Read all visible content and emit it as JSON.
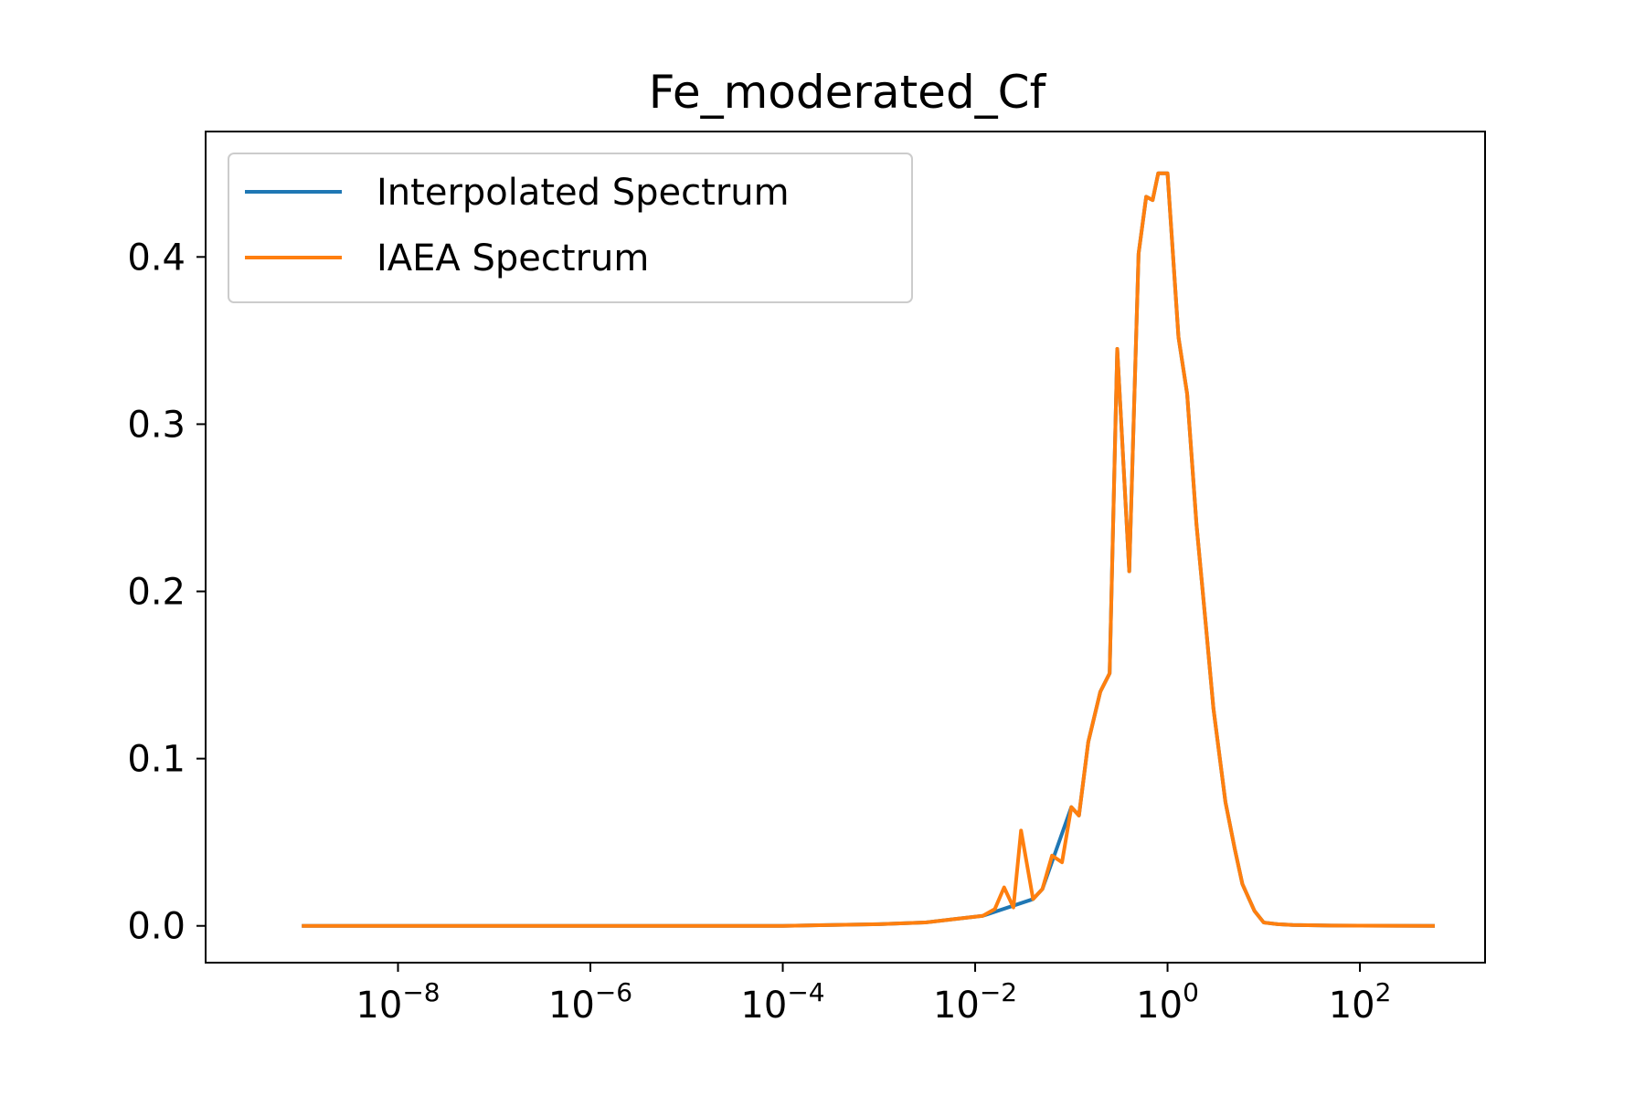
{
  "chart_data": {
    "type": "line",
    "title": "Fe_moderated_Cf",
    "xlabel": "",
    "ylabel": "",
    "xscale": "log",
    "xlim": [
      1e-10,
      2000
    ],
    "ylim": [
      -0.022,
      0.475
    ],
    "x_ticks": [
      {
        "value": 1e-08,
        "base": "10",
        "exp": "−8"
      },
      {
        "value": 1e-06,
        "base": "10",
        "exp": "−6"
      },
      {
        "value": 0.0001,
        "base": "10",
        "exp": "−4"
      },
      {
        "value": 0.01,
        "base": "10",
        "exp": "−2"
      },
      {
        "value": 1,
        "base": "10",
        "exp": "0"
      },
      {
        "value": 100,
        "base": "10",
        "exp": "2"
      }
    ],
    "y_ticks": [
      {
        "value": 0.0,
        "label": "0.0"
      },
      {
        "value": 0.1,
        "label": "0.1"
      },
      {
        "value": 0.2,
        "label": "0.2"
      },
      {
        "value": 0.3,
        "label": "0.3"
      },
      {
        "value": 0.4,
        "label": "0.4"
      }
    ],
    "grid": false,
    "legend_position": "top-left",
    "series": [
      {
        "name": "Interpolated Spectrum",
        "color": "#1f77b4",
        "x": [
          1e-09,
          1e-08,
          1e-06,
          0.0001,
          0.001,
          0.003,
          0.006,
          0.012,
          0.04,
          0.05,
          0.1,
          0.12,
          0.15,
          0.2,
          0.25,
          0.3,
          0.4,
          0.5,
          0.6,
          0.7,
          0.8,
          1.0,
          1.3,
          1.6,
          2.0,
          2.5,
          3.0,
          4.0,
          5.0,
          6.0,
          8.0,
          10,
          14,
          20,
          50,
          100,
          600
        ],
        "y": [
          0,
          0,
          0,
          0,
          0.001,
          0.002,
          0.004,
          0.006,
          0.016,
          0.022,
          0.071,
          0.066,
          0.11,
          0.14,
          0.151,
          0.345,
          0.212,
          0.402,
          0.436,
          0.434,
          0.45,
          0.45,
          0.352,
          0.318,
          0.24,
          0.18,
          0.13,
          0.074,
          0.046,
          0.025,
          0.009,
          0.002,
          0.001,
          0.0005,
          0.0002,
          0.0001,
          0
        ]
      },
      {
        "name": "IAEA Spectrum",
        "color": "#ff7f0e",
        "x": [
          1e-09,
          1e-08,
          1e-06,
          0.0001,
          0.001,
          0.003,
          0.006,
          0.012,
          0.016,
          0.02,
          0.025,
          0.03,
          0.04,
          0.05,
          0.063,
          0.08,
          0.1,
          0.12,
          0.15,
          0.2,
          0.25,
          0.3,
          0.4,
          0.5,
          0.6,
          0.7,
          0.8,
          1.0,
          1.3,
          1.6,
          2.0,
          2.5,
          3.0,
          4.0,
          5.0,
          6.0,
          8.0,
          10,
          14,
          20,
          50,
          100,
          600
        ],
        "y": [
          0,
          0,
          0,
          0,
          0.001,
          0.002,
          0.004,
          0.006,
          0.01,
          0.023,
          0.011,
          0.057,
          0.016,
          0.022,
          0.042,
          0.038,
          0.071,
          0.066,
          0.11,
          0.14,
          0.151,
          0.345,
          0.212,
          0.402,
          0.436,
          0.434,
          0.45,
          0.45,
          0.352,
          0.318,
          0.24,
          0.18,
          0.13,
          0.074,
          0.046,
          0.025,
          0.009,
          0.002,
          0.001,
          0.0005,
          0.0002,
          0.0001,
          0
        ]
      }
    ]
  }
}
